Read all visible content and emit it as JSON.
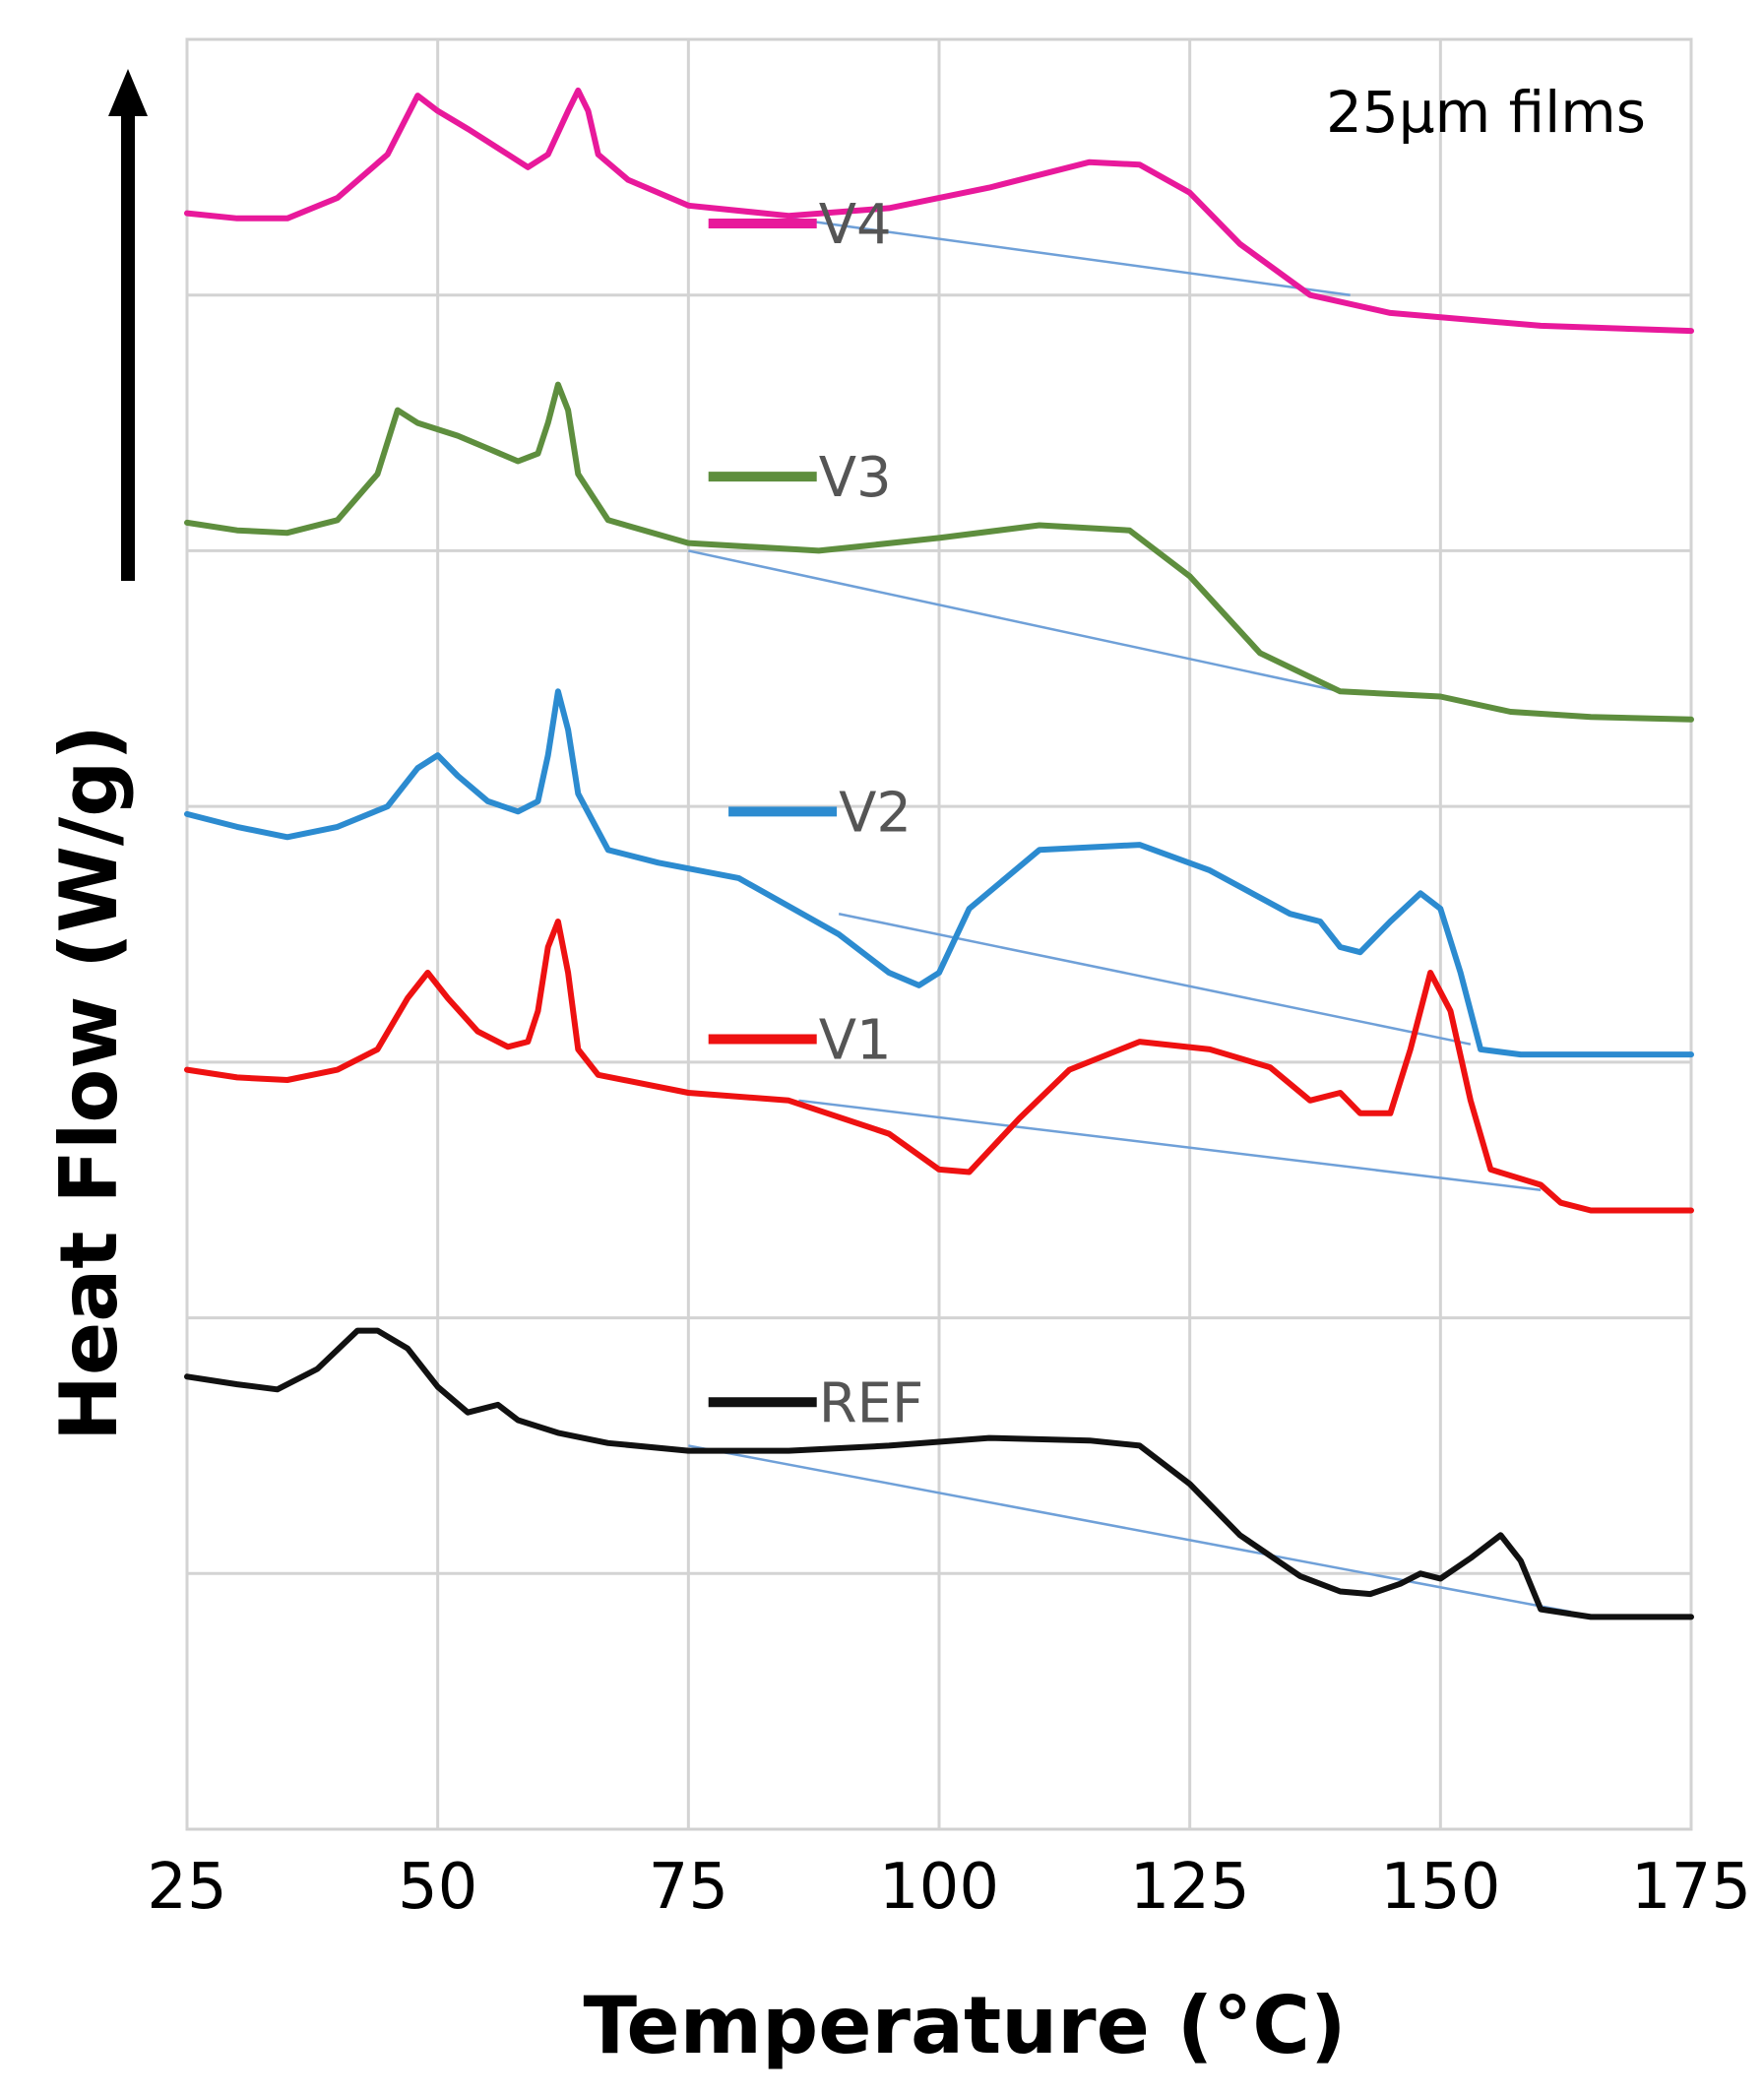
{
  "chart_data": {
    "type": "line",
    "title": "",
    "annotation": "25μm films",
    "xlabel": "Temperature (°C)",
    "ylabel": "Heat Flow (W/g)",
    "xlim": [
      25,
      175
    ],
    "x_ticks": [
      "25",
      "50",
      "75",
      "100",
      "125",
      "150",
      "175"
    ],
    "ylim": [
      0,
      7
    ],
    "y_ticks_labeled": false,
    "grid": true,
    "arrow": "up (offset arrow on y-axis)",
    "legend": "inline labels next to each curve",
    "series": [
      {
        "name": "V4",
        "color": "#e8199b",
        "label_at": [
          77,
          6.28
        ],
        "points": [
          [
            25,
            6.32
          ],
          [
            30,
            6.3
          ],
          [
            35,
            6.3
          ],
          [
            40,
            6.38
          ],
          [
            45,
            6.55
          ],
          [
            48,
            6.78
          ],
          [
            50,
            6.72
          ],
          [
            53,
            6.65
          ],
          [
            57,
            6.55
          ],
          [
            59,
            6.5
          ],
          [
            61,
            6.55
          ],
          [
            63,
            6.72
          ],
          [
            64,
            6.8
          ],
          [
            65,
            6.72
          ],
          [
            66,
            6.55
          ],
          [
            69,
            6.45
          ],
          [
            75,
            6.35
          ],
          [
            85,
            6.31
          ],
          [
            95,
            6.34
          ],
          [
            105,
            6.42
          ],
          [
            115,
            6.52
          ],
          [
            120,
            6.51
          ],
          [
            125,
            6.4
          ],
          [
            130,
            6.2
          ],
          [
            137,
            6.0
          ],
          [
            145,
            5.93
          ],
          [
            160,
            5.88
          ],
          [
            175,
            5.86
          ]
        ],
        "baseline": [
          [
            85,
            6.3
          ],
          [
            141,
            6.0
          ]
        ]
      },
      {
        "name": "V3",
        "color": "#5e8e3e",
        "label_at": [
          77,
          5.29
        ],
        "points": [
          [
            25,
            5.11
          ],
          [
            30,
            5.08
          ],
          [
            35,
            5.07
          ],
          [
            40,
            5.12
          ],
          [
            44,
            5.3
          ],
          [
            46,
            5.55
          ],
          [
            48,
            5.5
          ],
          [
            52,
            5.45
          ],
          [
            55,
            5.4
          ],
          [
            58,
            5.35
          ],
          [
            60,
            5.38
          ],
          [
            61,
            5.5
          ],
          [
            62,
            5.65
          ],
          [
            63,
            5.55
          ],
          [
            64,
            5.3
          ],
          [
            67,
            5.12
          ],
          [
            75,
            5.03
          ],
          [
            88,
            5.0
          ],
          [
            100,
            5.05
          ],
          [
            110,
            5.1
          ],
          [
            119,
            5.08
          ],
          [
            125,
            4.9
          ],
          [
            132,
            4.6
          ],
          [
            140,
            4.45
          ],
          [
            150,
            4.43
          ],
          [
            157,
            4.37
          ],
          [
            165,
            4.35
          ],
          [
            175,
            4.34
          ]
        ],
        "baseline": [
          [
            75,
            5.0
          ],
          [
            140,
            4.45
          ]
        ]
      },
      {
        "name": "V2",
        "color": "#2c8bd0",
        "label_at": [
          79,
          3.98
        ],
        "points": [
          [
            25,
            3.97
          ],
          [
            30,
            3.92
          ],
          [
            35,
            3.88
          ],
          [
            40,
            3.92
          ],
          [
            45,
            4.0
          ],
          [
            48,
            4.15
          ],
          [
            50,
            4.2
          ],
          [
            52,
            4.12
          ],
          [
            55,
            4.02
          ],
          [
            58,
            3.98
          ],
          [
            60,
            4.02
          ],
          [
            61,
            4.2
          ],
          [
            62,
            4.45
          ],
          [
            63,
            4.3
          ],
          [
            64,
            4.05
          ],
          [
            67,
            3.83
          ],
          [
            72,
            3.78
          ],
          [
            80,
            3.72
          ],
          [
            90,
            3.5
          ],
          [
            95,
            3.35
          ],
          [
            98,
            3.3
          ],
          [
            100,
            3.35
          ],
          [
            103,
            3.6
          ],
          [
            110,
            3.83
          ],
          [
            120,
            3.85
          ],
          [
            127,
            3.75
          ],
          [
            135,
            3.58
          ],
          [
            138,
            3.55
          ],
          [
            140,
            3.45
          ],
          [
            142,
            3.43
          ],
          [
            145,
            3.55
          ],
          [
            148,
            3.66
          ],
          [
            150,
            3.6
          ],
          [
            152,
            3.35
          ],
          [
            154,
            3.05
          ],
          [
            158,
            3.03
          ],
          [
            175,
            3.03
          ]
        ],
        "baseline": [
          [
            90,
            3.58
          ],
          [
            153,
            3.07
          ]
        ]
      },
      {
        "name": "V1",
        "color": "#ee1111",
        "label_at": [
          77,
          3.09
        ],
        "points": [
          [
            25,
            2.97
          ],
          [
            30,
            2.94
          ],
          [
            35,
            2.93
          ],
          [
            40,
            2.97
          ],
          [
            44,
            3.05
          ],
          [
            47,
            3.25
          ],
          [
            49,
            3.35
          ],
          [
            51,
            3.25
          ],
          [
            54,
            3.12
          ],
          [
            57,
            3.06
          ],
          [
            59,
            3.08
          ],
          [
            60,
            3.2
          ],
          [
            61,
            3.45
          ],
          [
            62,
            3.55
          ],
          [
            63,
            3.35
          ],
          [
            64,
            3.05
          ],
          [
            66,
            2.95
          ],
          [
            75,
            2.88
          ],
          [
            85,
            2.85
          ],
          [
            95,
            2.72
          ],
          [
            100,
            2.58
          ],
          [
            103,
            2.57
          ],
          [
            108,
            2.78
          ],
          [
            113,
            2.97
          ],
          [
            120,
            3.08
          ],
          [
            127,
            3.05
          ],
          [
            133,
            2.98
          ],
          [
            137,
            2.85
          ],
          [
            140,
            2.88
          ],
          [
            142,
            2.8
          ],
          [
            145,
            2.8
          ],
          [
            147,
            3.05
          ],
          [
            149,
            3.35
          ],
          [
            151,
            3.2
          ],
          [
            153,
            2.85
          ],
          [
            155,
            2.58
          ],
          [
            160,
            2.52
          ],
          [
            162,
            2.45
          ],
          [
            165,
            2.42
          ],
          [
            175,
            2.42
          ]
        ],
        "baseline": [
          [
            86,
            2.85
          ],
          [
            160,
            2.5
          ]
        ]
      },
      {
        "name": "REF",
        "color": "#111111",
        "label_at": [
          77,
          1.67
        ],
        "points": [
          [
            25,
            1.77
          ],
          [
            30,
            1.74
          ],
          [
            34,
            1.72
          ],
          [
            38,
            1.8
          ],
          [
            42,
            1.95
          ],
          [
            44,
            1.95
          ],
          [
            47,
            1.88
          ],
          [
            50,
            1.73
          ],
          [
            53,
            1.63
          ],
          [
            56,
            1.66
          ],
          [
            58,
            1.6
          ],
          [
            62,
            1.55
          ],
          [
            67,
            1.51
          ],
          [
            75,
            1.48
          ],
          [
            85,
            1.48
          ],
          [
            95,
            1.5
          ],
          [
            105,
            1.53
          ],
          [
            115,
            1.52
          ],
          [
            120,
            1.5
          ],
          [
            125,
            1.35
          ],
          [
            130,
            1.15
          ],
          [
            136,
            0.99
          ],
          [
            140,
            0.93
          ],
          [
            143,
            0.92
          ],
          [
            146,
            0.96
          ],
          [
            148,
            1.0
          ],
          [
            150,
            0.98
          ],
          [
            153,
            1.06
          ],
          [
            156,
            1.15
          ],
          [
            158,
            1.05
          ],
          [
            160,
            0.86
          ],
          [
            165,
            0.83
          ],
          [
            175,
            0.83
          ]
        ],
        "baseline": [
          [
            75,
            1.5
          ],
          [
            163,
            0.85
          ]
        ]
      }
    ]
  }
}
